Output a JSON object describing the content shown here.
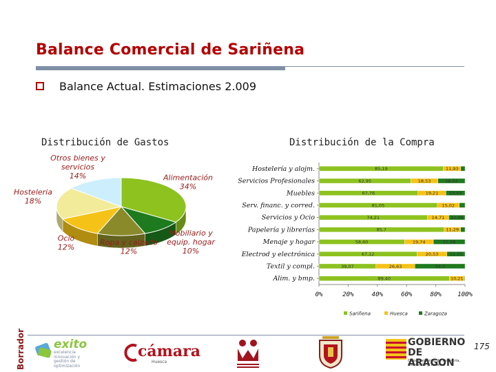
{
  "title": "Balance Comercial de Sariñena",
  "subtitle": "Balance Actual. Estimaciones 2.009",
  "left_heading": "Distribución de Gastos",
  "right_heading": "Distribución de la Compra",
  "page_number": "175",
  "draft_mark": "Borrador",
  "logos": {
    "exito_name": "exito",
    "exito_tagline": "excelencia innovación y gestión de optimización",
    "camara_name": "cámara",
    "camara_sub": "Huesca",
    "gobierno_name": "GOBIERNO DE ARAGON",
    "gobierno_sub": "Departamento de Industria, Comercio y Turismo"
  },
  "colors": {
    "title": "#b30000",
    "alimentacion": "#8dc21f",
    "mobiliario": "#1e7a1e",
    "ropa": "#8a8a2a",
    "ocio": "#f5c318",
    "hosteleria": "#f2eb9a",
    "otros": "#cdeffd",
    "sarinena": "#8dc21f",
    "huesca": "#f5c318",
    "zaragoza": "#1e7a1e"
  },
  "chart_data": [
    {
      "type": "pie",
      "title": "Distribución de Gastos",
      "unit": "%",
      "slices": [
        {
          "name": "Alimentación",
          "value": 34,
          "label": "Alimentación\n34%",
          "color": "#8dc21f"
        },
        {
          "name": "Mobiliario y equip. hogar",
          "value": 10,
          "label": "Mobiliario y\nequip. hogar\n10%",
          "color": "#1e7a1e"
        },
        {
          "name": "Ropa y calzado",
          "value": 12,
          "label": "Ropa y calzado\n12%",
          "color": "#8a8a2a"
        },
        {
          "name": "Ocio",
          "value": 12,
          "label": "Ocio\n12%",
          "color": "#f5c318"
        },
        {
          "name": "Hosteleria",
          "value": 18,
          "label": "Hosteleria\n18%",
          "color": "#f2eb9a"
        },
        {
          "name": "Otros bienes y servicios",
          "value": 14,
          "label": "Otros bienes y\nservicios\n14%",
          "color": "#cdeffd"
        }
      ]
    },
    {
      "type": "bar",
      "stacked": true,
      "orientation": "horizontal",
      "title": "Distribución de la Compra",
      "categories": [
        "Hostelería y alojm.",
        "Servicios Profesionales",
        "Muebles",
        "Serv. financ. y corred.",
        "Servicios y Ocio",
        "Papelería y librerías",
        "Menaje y hogar",
        "Electrod y electrónica",
        "Textil y compl.",
        "Alim. y bmp."
      ],
      "xlim": [
        0,
        100
      ],
      "x_ticks": [
        "0%",
        "20%",
        "40%",
        "60%",
        "80%",
        "100%"
      ],
      "series": [
        {
          "name": "Sariñena",
          "values": [
            85.19,
            62.95,
            67.76,
            81.05,
            74.21,
            85.7,
            58.6,
            67.12,
            39.07,
            89.4
          ],
          "labels": [
            "85,19",
            "62,95",
            "67,76",
            "81,05",
            "74,21",
            "85,7",
            "58,60",
            "67,12",
            "39,07",
            "89,40"
          ]
        },
        {
          "name": "Huesca",
          "values": [
            11.93,
            18.53,
            19.21,
            15.02,
            14.71,
            11.29,
            19.74,
            20.53,
            26.63,
            10.21
          ],
          "labels": [
            "11,93",
            "18,53",
            "19,21",
            "15,02",
            "14,71",
            "11,29",
            "19,74",
            "20,53",
            "26,63",
            "10,21"
          ]
        },
        {
          "name": "Zaragoza",
          "values": [
            2.88,
            18.52,
            13.03,
            3.93,
            11.08,
            3.01,
            21.66,
            12.35,
            34.3,
            0.39
          ],
          "labels": [
            "",
            "18,52",
            "13,03",
            "",
            "11,08",
            "",
            "21,66",
            "12,35",
            "34,3",
            ""
          ]
        }
      ],
      "legend_position": "bottom"
    }
  ]
}
